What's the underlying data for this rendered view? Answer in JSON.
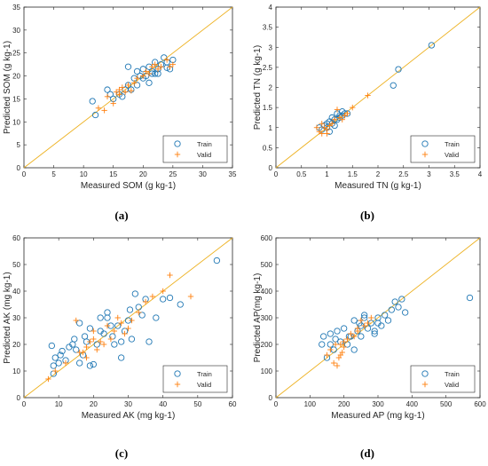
{
  "colors": {
    "train": "#1f77b4",
    "valid": "#ff7f0e",
    "identity_line": "#edb120",
    "axis": "#262626",
    "background": "#ffffff"
  },
  "chart_data": [
    {
      "type": "scatter",
      "caption": "(a)",
      "xlabel": "Measured SOM (g kg-1)",
      "ylabel": "Predicted SOM (g kg-1)",
      "xlim": [
        0,
        35
      ],
      "ylim": [
        0,
        35
      ],
      "xticks": [
        0,
        5,
        10,
        15,
        20,
        25,
        30,
        35
      ],
      "yticks": [
        0,
        5,
        10,
        15,
        20,
        25,
        30,
        35
      ],
      "identity_line": true,
      "legend_position": "bottom-right",
      "series": [
        {
          "name": "Train",
          "marker": "circle",
          "x": [
            11.5,
            12,
            14,
            14.5,
            15,
            16,
            16.5,
            17,
            17.5,
            17.5,
            18,
            18.5,
            19,
            19.5,
            20,
            20.5,
            21,
            21,
            21.5,
            22,
            22,
            22.5,
            23,
            23.5,
            24,
            24.5,
            25,
            20,
            21.5,
            22.5,
            24,
            19
          ],
          "y": [
            14.5,
            11.5,
            17,
            16,
            15,
            16,
            15.5,
            17,
            18,
            22,
            17,
            19.5,
            18,
            20,
            21.5,
            20,
            22,
            18.5,
            21,
            23,
            20.5,
            21.5,
            22.5,
            24,
            23,
            21.5,
            23.5,
            19.5,
            20.5,
            20.5,
            21.8,
            21
          ]
        },
        {
          "name": "Valid",
          "marker": "plus",
          "x": [
            12.5,
            13.5,
            14,
            15,
            15.5,
            16,
            16.5,
            17,
            17.5,
            18,
            18.5,
            19,
            20,
            20.5,
            21,
            21.5,
            22,
            22.5,
            23,
            24,
            24.5,
            25,
            16
          ],
          "y": [
            13,
            12.5,
            15.5,
            14,
            16.5,
            16,
            17.5,
            16.5,
            18,
            16.8,
            18.5,
            19.5,
            20,
            21,
            20.5,
            22,
            22.5,
            21.5,
            22,
            23.5,
            22,
            22.5,
            17
          ]
        }
      ]
    },
    {
      "type": "scatter",
      "caption": "(b)",
      "xlabel": "Measured TN (g kg-1)",
      "ylabel": "Predicted TN (g kg-1)",
      "xlim": [
        0,
        4
      ],
      "ylim": [
        0,
        4
      ],
      "xticks": [
        0,
        0.5,
        1,
        1.5,
        2,
        2.5,
        3,
        3.5,
        4
      ],
      "xtick_labels": [
        "0",
        "0.5",
        "1",
        "1.5",
        "2",
        "2.5",
        "3",
        "3.5",
        "4"
      ],
      "yticks": [
        0,
        0.5,
        1,
        1.5,
        2,
        2.5,
        3,
        3.5,
        4
      ],
      "ytick_labels": [
        "0",
        "0.5",
        "1",
        "1.5",
        "2",
        "2.5",
        "3",
        "3.5",
        "4"
      ],
      "identity_line": true,
      "legend_position": "bottom-right",
      "series": [
        {
          "name": "Train",
          "marker": "circle",
          "x": [
            0.85,
            0.9,
            0.95,
            1.0,
            1.0,
            1.05,
            1.1,
            1.1,
            1.15,
            1.2,
            1.2,
            1.25,
            1.3,
            1.3,
            1.35,
            1.4,
            1.05,
            1.15,
            1.25,
            2.3,
            2.4,
            3.05
          ],
          "y": [
            1.0,
            0.95,
            1.05,
            1.0,
            1.1,
            1.15,
            1.1,
            1.25,
            1.2,
            1.2,
            1.35,
            1.3,
            1.3,
            1.4,
            1.35,
            1.35,
            0.9,
            1.05,
            1.25,
            2.05,
            2.45,
            3.05
          ]
        },
        {
          "name": "Valid",
          "marker": "plus",
          "x": [
            0.8,
            0.85,
            0.9,
            0.95,
            1.0,
            1.05,
            1.1,
            1.15,
            1.2,
            1.25,
            1.3,
            1.35,
            1.4,
            1.5,
            1.8,
            0.9,
            1.0
          ],
          "y": [
            1.0,
            0.9,
            0.85,
            1.0,
            0.95,
            1.05,
            1.1,
            1.2,
            1.45,
            1.25,
            1.2,
            1.3,
            1.35,
            1.5,
            1.8,
            1.1,
            0.85
          ]
        }
      ]
    },
    {
      "type": "scatter",
      "caption": "(c)",
      "xlabel": "Measured AK (mg kg-1)",
      "ylabel": "Predicted AK (mg kg-1)",
      "xlim": [
        0,
        60
      ],
      "ylim": [
        0,
        60
      ],
      "xticks": [
        0,
        10,
        20,
        30,
        40,
        50,
        60
      ],
      "yticks": [
        0,
        10,
        20,
        30,
        40,
        50,
        60
      ],
      "identity_line": true,
      "legend_position": "bottom-right",
      "series": [
        {
          "name": "Train",
          "marker": "circle",
          "x": [
            8,
            8.5,
            9,
            10,
            10.5,
            11,
            12,
            13,
            14,
            14.5,
            15,
            16,
            17,
            17.5,
            18,
            19,
            20,
            21,
            22,
            23,
            24,
            25,
            25.5,
            26,
            27,
            28,
            29,
            30,
            30.5,
            31,
            32,
            33,
            34,
            35,
            36,
            38,
            40,
            42,
            45,
            55.5,
            16,
            19,
            22,
            24,
            28,
            8.5
          ],
          "y": [
            19.5,
            12,
            15,
            13,
            16,
            17.5,
            14,
            19,
            20,
            22,
            18,
            13,
            16,
            23,
            21,
            12,
            12.5,
            20,
            25,
            24,
            30,
            27,
            23,
            20,
            27,
            15,
            25,
            29,
            33,
            22,
            39,
            34,
            31,
            37,
            21,
            30,
            37,
            37.5,
            35,
            51.5,
            28,
            26,
            30,
            32,
            21,
            9
          ]
        },
        {
          "name": "Valid",
          "marker": "plus",
          "x": [
            7,
            9,
            12,
            15,
            16,
            17,
            18,
            19,
            20,
            21,
            22,
            23,
            24,
            25,
            26,
            27,
            28,
            29,
            30,
            31,
            33,
            35,
            37,
            40,
            42,
            48,
            18,
            20
          ],
          "y": [
            7,
            10,
            13,
            29,
            17,
            17,
            19,
            21,
            25,
            18,
            21,
            20,
            27,
            22,
            25,
            30,
            28,
            24,
            26,
            29,
            32,
            36,
            38,
            40,
            46,
            38,
            15,
            22
          ]
        }
      ]
    },
    {
      "type": "scatter",
      "caption": "(d)",
      "xlabel": "Measured AP (mg kg-1)",
      "ylabel": "Predicted AP(mg kg-1)",
      "xlim": [
        0,
        600
      ],
      "ylim": [
        0,
        600
      ],
      "xticks": [
        0,
        100,
        200,
        300,
        400,
        500,
        600
      ],
      "yticks": [
        0,
        100,
        200,
        300,
        400,
        500,
        600
      ],
      "identity_line": true,
      "legend_position": "bottom-right",
      "series": [
        {
          "name": "Train",
          "marker": "circle",
          "x": [
            135,
            140,
            150,
            160,
            170,
            175,
            180,
            190,
            200,
            210,
            215,
            220,
            230,
            240,
            245,
            250,
            260,
            270,
            280,
            290,
            300,
            310,
            320,
            330,
            340,
            350,
            360,
            370,
            380,
            570,
            230,
            260,
            290,
            160,
            250,
            300
          ],
          "y": [
            200,
            230,
            150,
            240,
            180,
            220,
            250,
            210,
            260,
            200,
            230,
            230,
            290,
            250,
            280,
            270,
            300,
            260,
            280,
            250,
            300,
            270,
            310,
            290,
            330,
            360,
            340,
            370,
            320,
            375,
            180,
            310,
            240,
            200,
            230,
            280
          ]
        },
        {
          "name": "Valid",
          "marker": "plus",
          "x": [
            150,
            160,
            170,
            175,
            180,
            185,
            190,
            195,
            200,
            210,
            220,
            230,
            240,
            250,
            260,
            270,
            280,
            190,
            200,
            240
          ],
          "y": [
            160,
            180,
            130,
            200,
            120,
            150,
            200,
            170,
            190,
            220,
            240,
            230,
            250,
            290,
            270,
            280,
            300,
            160,
            210,
            260
          ]
        }
      ]
    }
  ]
}
